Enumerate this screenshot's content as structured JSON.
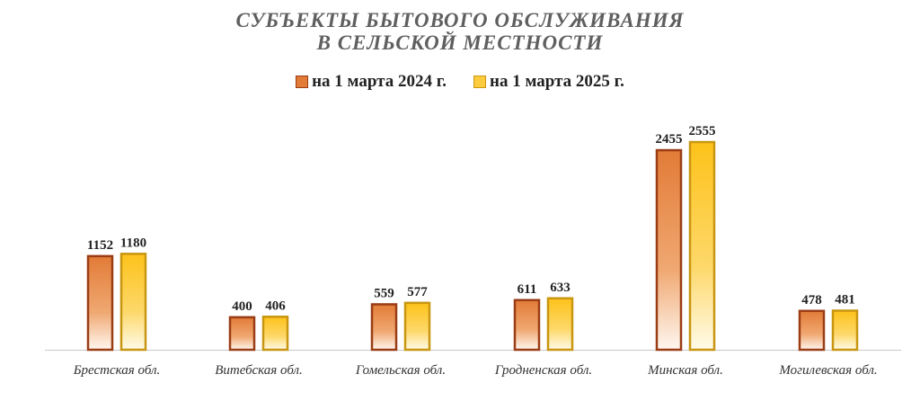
{
  "chart_data": {
    "type": "bar",
    "title_lines": [
      "СУБЪЕКТЫ БЫТОВОГО ОБСЛУЖИВАНИЯ",
      "В СЕЛЬСКОЙ МЕСТНОСТИ"
    ],
    "categories": [
      "Брестская обл.",
      "Витебская обл.",
      "Гомельская обл.",
      "Гродненская обл.",
      "Минская обл.",
      "Могилевская обл."
    ],
    "series": [
      {
        "name": "на 1 марта 2024 г.",
        "values": [
          1152,
          400,
          559,
          611,
          2455,
          478
        ],
        "color": "#e27b37",
        "border": "#9a3d15"
      },
      {
        "name": "на 1 марта 2025 г.",
        "values": [
          1180,
          406,
          577,
          633,
          2555,
          481
        ],
        "color": "#fdcb3d",
        "border": "#c89610"
      }
    ],
    "ylim": [
      0,
      2555
    ],
    "grid": false,
    "legend_position": "top-center",
    "data_labels": true
  }
}
